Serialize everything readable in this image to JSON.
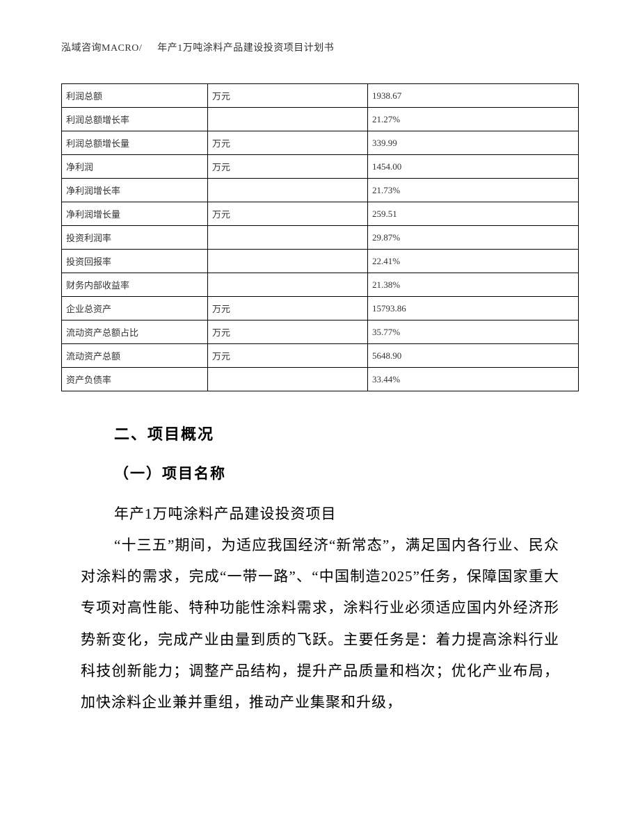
{
  "header": {
    "left": "泓域咨询MACRO/",
    "right": "年产1万吨涂料产品建设投资项目计划书"
  },
  "table": {
    "rows": [
      {
        "label": "利润总额",
        "unit": "万元",
        "value": "1938.67"
      },
      {
        "label": "利润总额增长率",
        "unit": "",
        "value": "21.27%"
      },
      {
        "label": "利润总额增长量",
        "unit": "万元",
        "value": "339.99"
      },
      {
        "label": "净利润",
        "unit": "万元",
        "value": "1454.00"
      },
      {
        "label": "净利润增长率",
        "unit": "",
        "value": "21.73%"
      },
      {
        "label": "净利润增长量",
        "unit": "万元",
        "value": "259.51"
      },
      {
        "label": "投资利润率",
        "unit": "",
        "value": "29.87%"
      },
      {
        "label": "投资回报率",
        "unit": "",
        "value": "22.41%"
      },
      {
        "label": "财务内部收益率",
        "unit": "",
        "value": "21.38%"
      },
      {
        "label": "企业总资产",
        "unit": "万元",
        "value": "15793.86"
      },
      {
        "label": "流动资产总额占比",
        "unit": "万元",
        "value": "35.77%"
      },
      {
        "label": "流动资产总额",
        "unit": "万元",
        "value": "5648.90"
      },
      {
        "label": "资产负债率",
        "unit": "",
        "value": "33.44%"
      }
    ]
  },
  "section": {
    "heading2": "二、项目概况",
    "heading3": "（一）项目名称",
    "project_name": "年产1万吨涂料产品建设投资项目",
    "paragraph": "“十三五”期间，为适应我国经济“新常态”，满足国内各行业、民众对涂料的需求，完成“一带一路”、“中国制造2025”任务，保障国家重大专项对高性能、特种功能性涂料需求，涂料行业必须适应国内外经济形势新变化，完成产业由量到质的飞跃。主要任务是：着力提高涂料行业科技创新能力；调整产品结构，提升产品质量和档次；优化产业布局，加快涂料企业兼并重组，推动产业集聚和升级，"
  }
}
